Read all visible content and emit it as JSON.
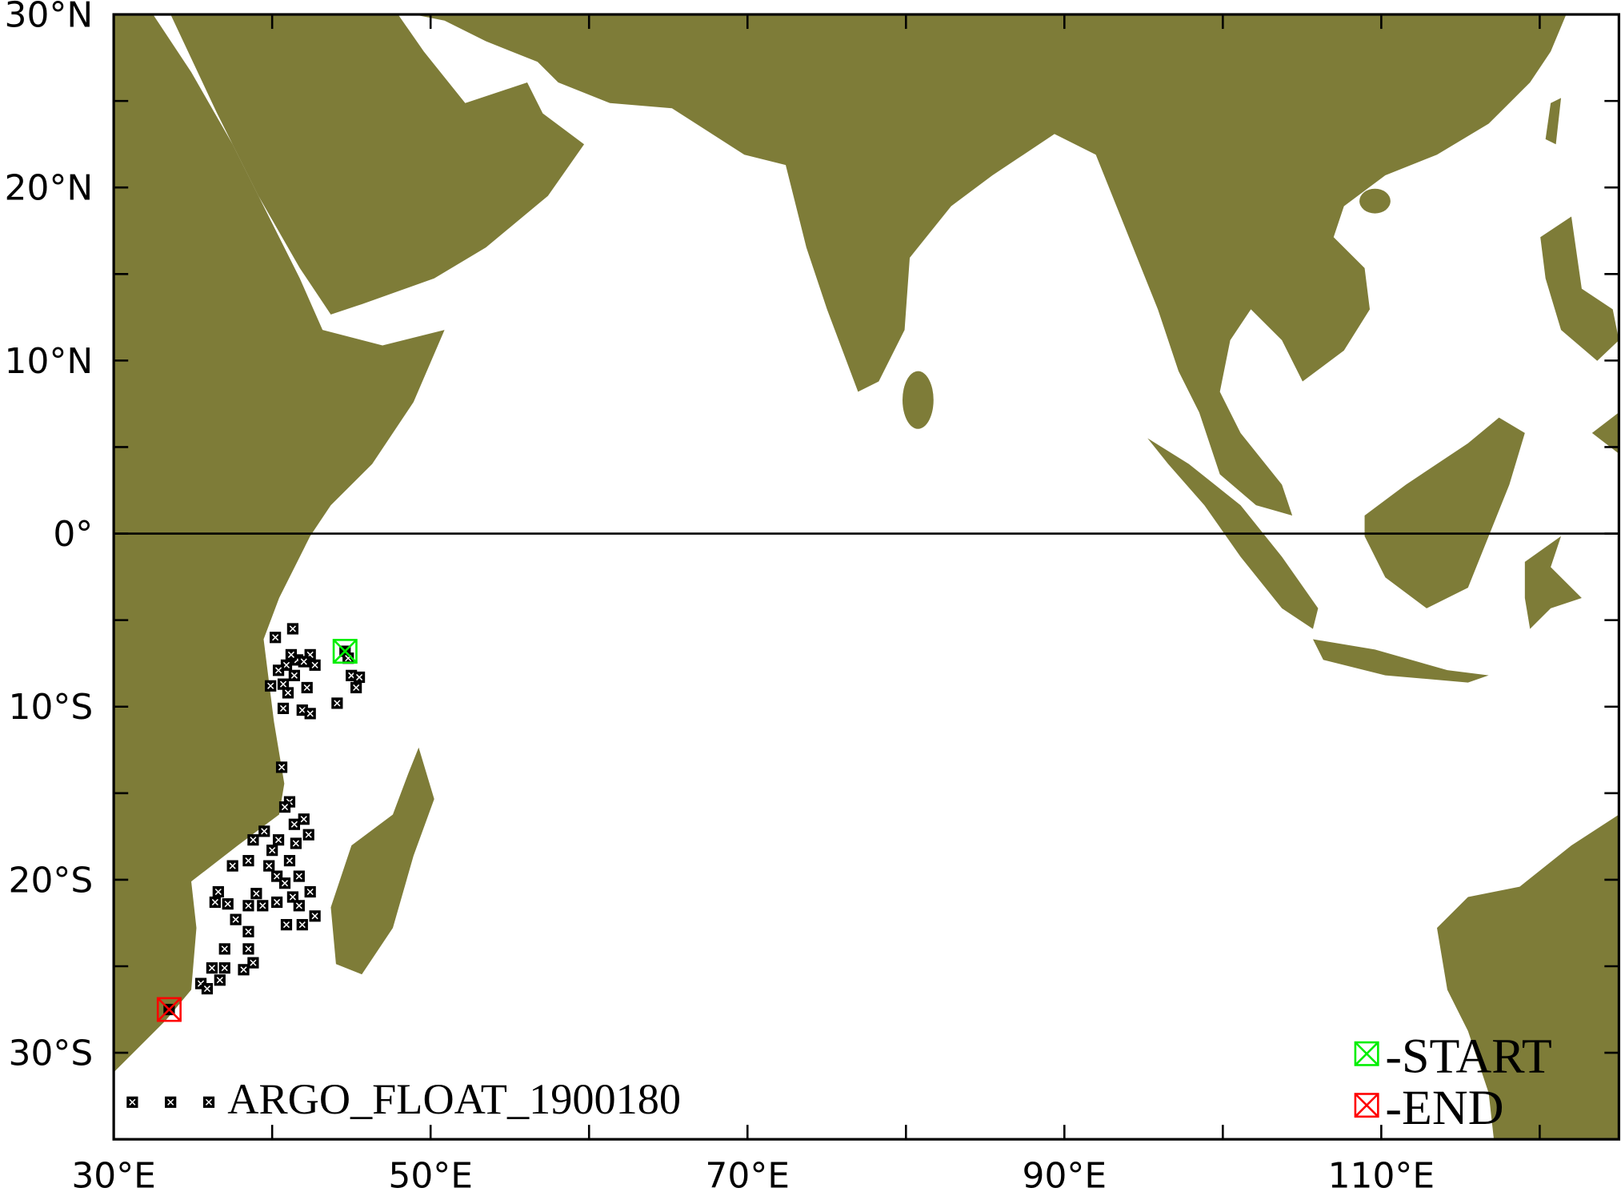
{
  "map": {
    "extent": {
      "lon": [
        30,
        125
      ],
      "lat": [
        -35,
        30
      ]
    },
    "land_color": "#7e7c38",
    "ocean_color": "#ffffff",
    "equator_line": true,
    "x_ticks": [
      {
        "value": 30,
        "label": "30°E"
      },
      {
        "value": 50,
        "label": "50°E"
      },
      {
        "value": 70,
        "label": "70°E"
      },
      {
        "value": 90,
        "label": "90°E"
      },
      {
        "value": 110,
        "label": "110°E"
      }
    ],
    "y_ticks": [
      {
        "value": 30,
        "label": "30°N"
      },
      {
        "value": 20,
        "label": "20°N"
      },
      {
        "value": 10,
        "label": "10°N"
      },
      {
        "value": 0,
        "label": "0°"
      },
      {
        "value": -10,
        "label": "10°S"
      },
      {
        "value": -20,
        "label": "20°S"
      },
      {
        "value": -30,
        "label": "30°S"
      }
    ]
  },
  "track": {
    "name": "ARGO_FLOAT_1900180",
    "marker_color": "#000000",
    "start": {
      "lon": 44.6,
      "lat": -6.8,
      "color": "#00ee00"
    },
    "end": {
      "lon": 33.5,
      "lat": -27.5,
      "color": "#ff0000"
    },
    "points": [
      [
        44.6,
        -6.8
      ],
      [
        44.8,
        -7.2
      ],
      [
        41.3,
        -5.5
      ],
      [
        40.2,
        -6.0
      ],
      [
        42.4,
        -7.0
      ],
      [
        41.6,
        -7.3
      ],
      [
        40.9,
        -7.6
      ],
      [
        42.7,
        -7.6
      ],
      [
        41.2,
        -7.0
      ],
      [
        42.0,
        -7.4
      ],
      [
        40.4,
        -7.9
      ],
      [
        39.9,
        -8.8
      ],
      [
        41.4,
        -8.2
      ],
      [
        42.2,
        -8.9
      ],
      [
        40.7,
        -8.7
      ],
      [
        41.0,
        -9.2
      ],
      [
        40.7,
        -10.1
      ],
      [
        41.9,
        -10.2
      ],
      [
        42.4,
        -10.4
      ],
      [
        44.1,
        -9.8
      ],
      [
        45.0,
        -8.2
      ],
      [
        45.5,
        -8.3
      ],
      [
        45.3,
        -8.9
      ],
      [
        40.6,
        -13.5
      ],
      [
        41.1,
        -15.5
      ],
      [
        40.8,
        -15.8
      ],
      [
        41.4,
        -16.8
      ],
      [
        42.3,
        -17.4
      ],
      [
        40.4,
        -17.7
      ],
      [
        38.8,
        -17.7
      ],
      [
        39.8,
        -19.2
      ],
      [
        38.5,
        -18.9
      ],
      [
        37.5,
        -19.2
      ],
      [
        36.6,
        -20.7
      ],
      [
        36.4,
        -21.3
      ],
      [
        37.2,
        -21.4
      ],
      [
        38.5,
        -21.5
      ],
      [
        39.4,
        -21.5
      ],
      [
        40.3,
        -21.3
      ],
      [
        40.3,
        -19.8
      ],
      [
        41.1,
        -18.9
      ],
      [
        41.7,
        -19.8
      ],
      [
        42.4,
        -20.7
      ],
      [
        41.7,
        -21.5
      ],
      [
        42.7,
        -22.1
      ],
      [
        41.9,
        -22.6
      ],
      [
        40.9,
        -22.6
      ],
      [
        38.5,
        -23.0
      ],
      [
        37.7,
        -22.3
      ],
      [
        37.0,
        -24.0
      ],
      [
        38.5,
        -24.0
      ],
      [
        38.8,
        -24.8
      ],
      [
        38.2,
        -25.2
      ],
      [
        36.2,
        -25.1
      ],
      [
        37.0,
        -25.1
      ],
      [
        36.7,
        -25.8
      ],
      [
        35.5,
        -26.0
      ],
      [
        35.9,
        -26.3
      ],
      [
        39.5,
        -17.2
      ],
      [
        40.0,
        -18.3
      ],
      [
        41.5,
        -17.9
      ],
      [
        42.0,
        -16.5
      ],
      [
        39.0,
        -20.8
      ],
      [
        40.8,
        -20.2
      ],
      [
        41.3,
        -21.0
      ],
      [
        33.5,
        -27.5
      ]
    ]
  },
  "legend": {
    "start_label": "-START",
    "end_label": "-END"
  }
}
